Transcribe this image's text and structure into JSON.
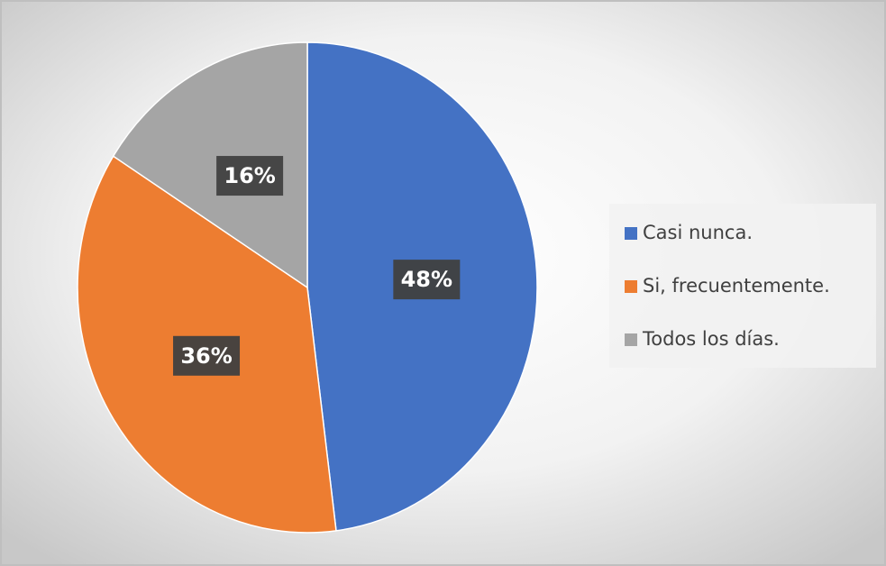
{
  "chart_data": {
    "type": "pie",
    "categories": [
      "Casi nunca.",
      "Si, frecuentemente.",
      "Todos los días."
    ],
    "values": [
      48,
      36,
      16
    ],
    "value_labels": [
      "48%",
      "36%",
      "16%"
    ],
    "colors": [
      "#4472c4",
      "#ed7d31",
      "#a5a5a5"
    ],
    "legend": "right"
  }
}
